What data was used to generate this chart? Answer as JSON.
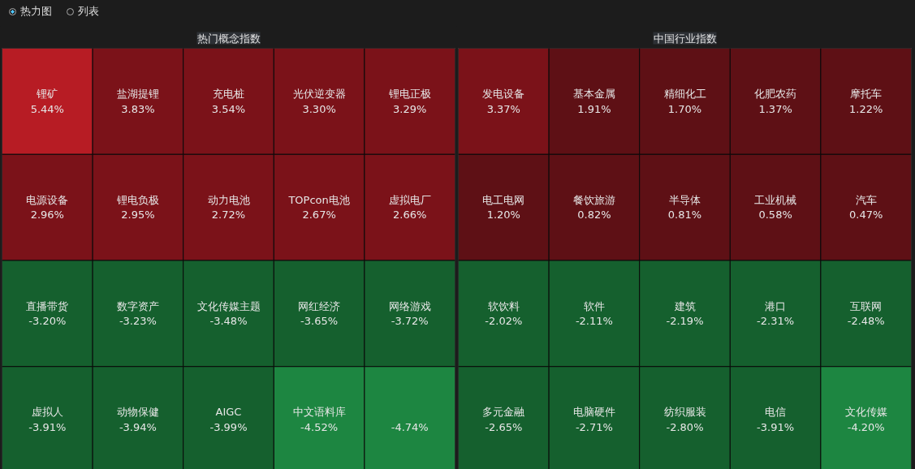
{
  "chart_data": [
    {
      "type": "other",
      "title": "热门概念指数",
      "annotations": [
        "热力图",
        "列表"
      ],
      "categories": [
        "锂矿",
        "盐湖提锂",
        "充电桩",
        "光伏逆变器",
        "锂电正极",
        "电源设备",
        "锂电负极",
        "动力电池",
        "TOPcon电池",
        "虚拟电厂",
        "直播带货",
        "数字资产",
        "文化传媒主题",
        "网红经济",
        "网络游戏",
        "虚拟人",
        "动物保健",
        "AIGC",
        "中文语料库",
        null
      ],
      "values": [
        5.44,
        3.83,
        3.54,
        3.3,
        3.29,
        2.96,
        2.95,
        2.72,
        2.67,
        2.66,
        -3.2,
        -3.23,
        -3.48,
        -3.65,
        -3.72,
        -3.91,
        -3.94,
        -3.99,
        -4.52,
        -4.74
      ],
      "value_labels": [
        "5.44%",
        "3.83%",
        "3.54%",
        "3.30%",
        "3.29%",
        "2.96%",
        "2.95%",
        "2.72%",
        "2.67%",
        "2.66%",
        "-3.20%",
        "-3.23%",
        "-3.48%",
        "-3.65%",
        "-3.72%",
        "-3.91%",
        "-3.94%",
        "-3.99%",
        "-4.52%",
        "-4.74%"
      ]
    },
    {
      "type": "other",
      "title": "中国行业指数",
      "categories": [
        "发电设备",
        "基本金属",
        "精细化工",
        "化肥农药",
        "摩托车",
        "电工电网",
        "餐饮旅游",
        "半导体",
        "工业机械",
        "汽车",
        "软饮料",
        "软件",
        "建筑",
        "港口",
        "互联网",
        "多元金融",
        "电脑硬件",
        "纺织服装",
        "电信",
        "文化传媒"
      ],
      "values": [
        3.37,
        1.91,
        1.7,
        1.37,
        1.22,
        1.2,
        0.82,
        0.81,
        0.58,
        0.47,
        -2.02,
        -2.11,
        -2.19,
        -2.31,
        -2.48,
        -2.65,
        -2.71,
        -2.8,
        -3.91,
        -4.2
      ],
      "value_labels": [
        "3.37%",
        "1.91%",
        "1.70%",
        "1.37%",
        "1.22%",
        "1.20%",
        "0.82%",
        "0.81%",
        "0.58%",
        "0.47%",
        "-2.02%",
        "-2.11%",
        "-2.19%",
        "-2.31%",
        "-2.48%",
        "-2.65%",
        "-2.71%",
        "-2.80%",
        "-3.91%",
        "-4.20%"
      ]
    }
  ]
}
